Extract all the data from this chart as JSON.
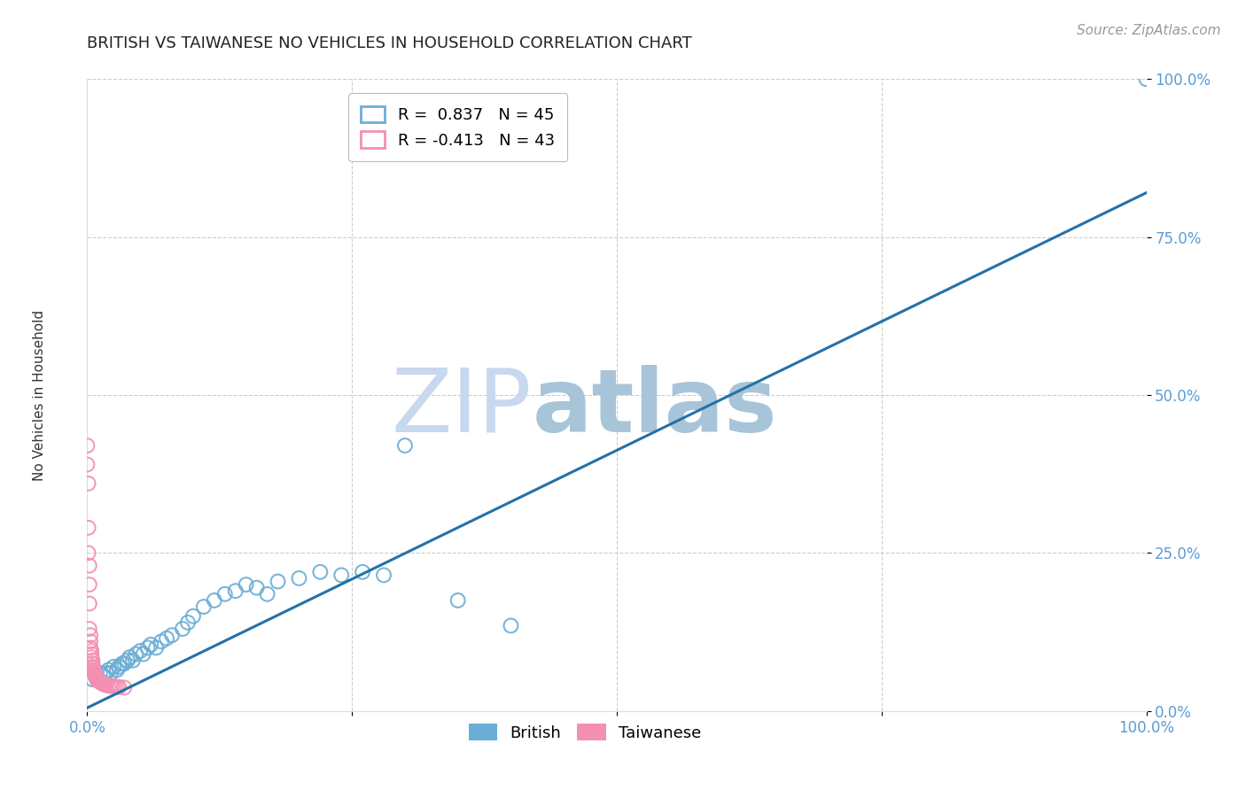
{
  "title": "BRITISH VS TAIWANESE NO VEHICLES IN HOUSEHOLD CORRELATION CHART",
  "source": "Source: ZipAtlas.com",
  "ylabel": "No Vehicles in Household",
  "xlim": [
    0.0,
    1.0
  ],
  "ylim": [
    0.0,
    1.0
  ],
  "british_R": 0.837,
  "british_N": 45,
  "taiwanese_R": -0.413,
  "taiwanese_N": 43,
  "british_color": "#6aaed6",
  "taiwanese_color": "#f48fb1",
  "trend_color": "#2471a8",
  "background_color": "#ffffff",
  "grid_color": "#cccccc",
  "title_color": "#222222",
  "tick_color": "#5b9bd5",
  "source_color": "#999999",
  "watermark_zip": "ZIP",
  "watermark_atlas": "atlas",
  "watermark_color_zip": "#c8d8ee",
  "watermark_color_atlas": "#a8c4d8",
  "legend_british_label": "British",
  "legend_taiwanese_label": "Taiwanese",
  "marker_size": 130,
  "marker_lw": 1.5,
  "title_fontsize": 13,
  "label_fontsize": 11,
  "tick_fontsize": 12,
  "legend_fontsize": 13,
  "source_fontsize": 11,
  "british_x": [
    0.005,
    0.008,
    0.01,
    0.012,
    0.015,
    0.018,
    0.02,
    0.022,
    0.025,
    0.028,
    0.03,
    0.033,
    0.035,
    0.038,
    0.04,
    0.043,
    0.046,
    0.05,
    0.053,
    0.057,
    0.06,
    0.065,
    0.07,
    0.075,
    0.08,
    0.09,
    0.095,
    0.1,
    0.11,
    0.12,
    0.13,
    0.14,
    0.15,
    0.16,
    0.17,
    0.18,
    0.2,
    0.22,
    0.24,
    0.26,
    0.28,
    0.3,
    0.35,
    0.4,
    1.0
  ],
  "british_y": [
    0.05,
    0.055,
    0.05,
    0.06,
    0.055,
    0.06,
    0.065,
    0.06,
    0.07,
    0.065,
    0.07,
    0.075,
    0.075,
    0.08,
    0.085,
    0.08,
    0.09,
    0.095,
    0.09,
    0.1,
    0.105,
    0.1,
    0.11,
    0.115,
    0.12,
    0.13,
    0.14,
    0.15,
    0.165,
    0.175,
    0.185,
    0.19,
    0.2,
    0.195,
    0.185,
    0.205,
    0.21,
    0.22,
    0.215,
    0.22,
    0.215,
    0.42,
    0.175,
    0.135,
    1.0
  ],
  "taiwanese_x": [
    0.0,
    0.0,
    0.001,
    0.001,
    0.001,
    0.002,
    0.002,
    0.002,
    0.002,
    0.003,
    0.003,
    0.003,
    0.004,
    0.004,
    0.004,
    0.005,
    0.005,
    0.005,
    0.006,
    0.006,
    0.006,
    0.007,
    0.007,
    0.008,
    0.008,
    0.009,
    0.009,
    0.01,
    0.01,
    0.011,
    0.012,
    0.013,
    0.014,
    0.015,
    0.016,
    0.018,
    0.02,
    0.022,
    0.024,
    0.026,
    0.028,
    0.03,
    0.035
  ],
  "taiwanese_y": [
    0.42,
    0.39,
    0.36,
    0.29,
    0.25,
    0.23,
    0.2,
    0.17,
    0.13,
    0.12,
    0.11,
    0.1,
    0.095,
    0.09,
    0.085,
    0.08,
    0.075,
    0.07,
    0.068,
    0.065,
    0.062,
    0.06,
    0.058,
    0.056,
    0.054,
    0.052,
    0.05,
    0.05,
    0.048,
    0.048,
    0.046,
    0.045,
    0.044,
    0.043,
    0.042,
    0.041,
    0.04,
    0.04,
    0.039,
    0.039,
    0.038,
    0.038,
    0.037
  ],
  "trend_x_start": 0.0,
  "trend_y_start": 0.005,
  "trend_x_end": 1.0,
  "trend_y_end": 0.82,
  "ytick_positions": [
    0.0,
    0.25,
    0.5,
    0.75,
    1.0
  ],
  "ytick_labels": [
    "0.0%",
    "25.0%",
    "50.0%",
    "75.0%",
    "100.0%"
  ],
  "xtick_left_label": "0.0%",
  "xtick_right_label": "100.0%"
}
